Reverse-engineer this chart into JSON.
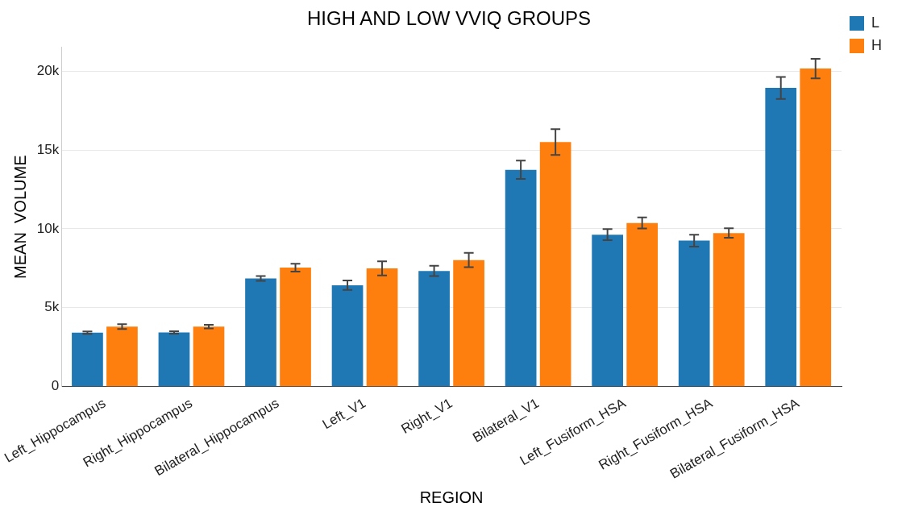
{
  "chart_data": {
    "type": "bar",
    "title": "HIGH AND LOW VVIQ GROUPS",
    "xlabel": "REGION",
    "ylabel": "MEAN  VOLUME",
    "categories": [
      "Left_Hippocampus",
      "Right_Hippocampus",
      "Bilateral_Hippocampus",
      "Left_V1",
      "Right_V1",
      "Bilateral_V1",
      "Left_Fusiform_HSA",
      "Right_Fusiform_HSA",
      "Bilateral_Fusiform_HSA"
    ],
    "series": [
      {
        "name": "L",
        "color": "#1f77b4",
        "values": [
          3420,
          3430,
          6850,
          6420,
          7330,
          13740,
          9630,
          9250,
          18930
        ],
        "errors": [
          80,
          80,
          150,
          300,
          330,
          580,
          350,
          380,
          700
        ]
      },
      {
        "name": "H",
        "color": "#ff7f0e",
        "values": [
          3800,
          3800,
          7540,
          7490,
          8020,
          15500,
          10370,
          9730,
          20160
        ],
        "errors": [
          150,
          110,
          250,
          450,
          450,
          820,
          350,
          300,
          620
        ]
      }
    ],
    "ylim": [
      0,
      21500
    ],
    "yticks": [
      {
        "value": 0,
        "label": "0"
      },
      {
        "value": 5000,
        "label": "5k"
      },
      {
        "value": 10000,
        "label": "10k"
      },
      {
        "value": 15000,
        "label": "15k"
      },
      {
        "value": 20000,
        "label": "20k"
      }
    ],
    "grid": "y",
    "legend": "top right"
  }
}
